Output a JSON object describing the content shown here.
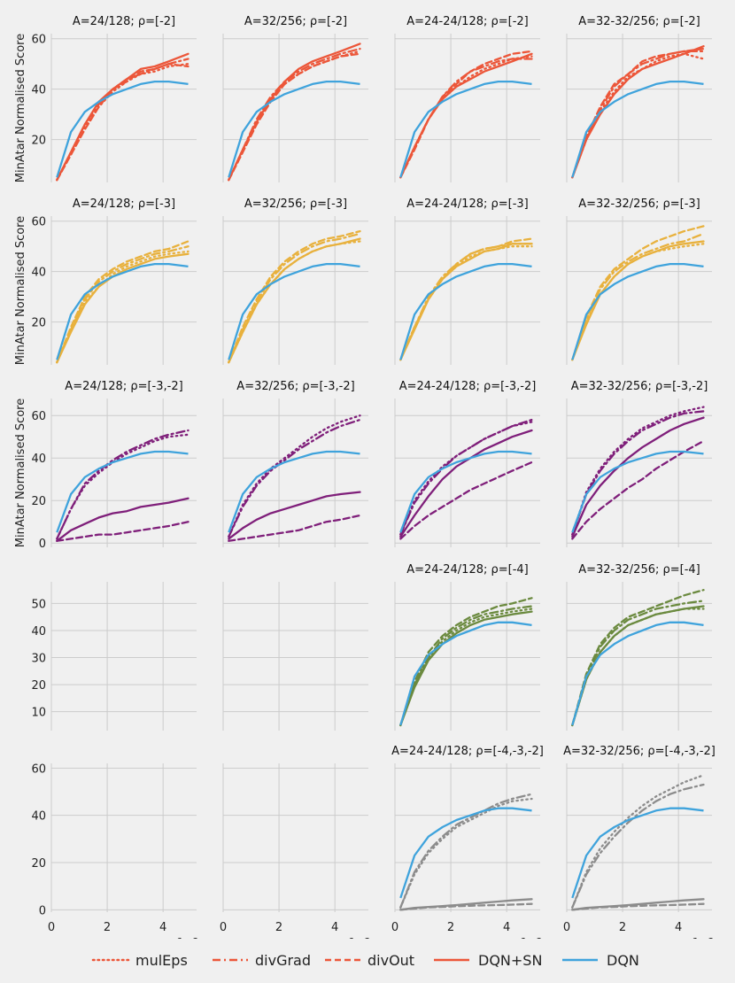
{
  "chart_data": {
    "type": "line",
    "figure_title": "",
    "ylabel": "MinAtar Normalised Score",
    "x_tick_labels": [
      "0",
      "2",
      "4"
    ],
    "x_ticks": [
      0,
      2,
      4
    ],
    "x_multiplier": "1e6",
    "xlim": [
      0,
      5.2
    ],
    "legend": [
      {
        "name": "mulEps",
        "style": "dotted"
      },
      {
        "name": "divGrad",
        "style": "dashdot"
      },
      {
        "name": "divOut",
        "style": "dashed"
      },
      {
        "name": "DQN+SN",
        "style": "solid"
      },
      {
        "name": "DQN",
        "style": "solid",
        "color": "#3fa3dc"
      }
    ],
    "colors": {
      "DQN": "#3fa3dc",
      "row1": "#ec5639",
      "row2": "#e8b13d",
      "row3": "#7f1f7a",
      "row4": "#6b8a3f",
      "row5": "#8c8c8c",
      "grid": "#cccccc",
      "background": "#f0f0f0"
    },
    "rows": [
      {
        "ylim": [
          3,
          62
        ],
        "yticks": [
          20,
          40,
          60
        ],
        "panels": [
          {
            "title": "A=24/128; ρ=[-2]",
            "mulEps": [
              4,
              14,
              25,
              33,
              39,
              43,
              46,
              47,
              49,
              50
            ],
            "divGrad": [
              4,
              15,
              26,
              34,
              40,
              44,
              46,
              48,
              50,
              52
            ],
            "divOut": [
              4,
              14,
              24,
              33,
              40,
              43,
              47,
              48,
              50,
              49
            ],
            "DQN+SN": [
              4,
              15,
              26,
              35,
              40,
              44,
              48,
              49,
              51,
              54
            ]
          },
          {
            "title": "A=32/256; ρ=[-2]",
            "mulEps": [
              4,
              15,
              27,
              36,
              42,
              46,
              49,
              51,
              53,
              55
            ],
            "divGrad": [
              4,
              16,
              28,
              37,
              43,
              47,
              50,
              52,
              54,
              56
            ],
            "divOut": [
              4,
              15,
              26,
              35,
              42,
              46,
              49,
              51,
              53,
              54
            ],
            "DQN+SN": [
              4,
              16,
              27,
              36,
              43,
              48,
              51,
              53,
              55,
              58
            ]
          },
          {
            "title": "A=24-24/128; ρ=[-2]",
            "mulEps": [
              5,
              17,
              28,
              36,
              41,
              45,
              48,
              50,
              52,
              53
            ],
            "divGrad": [
              5,
              17,
              28,
              37,
              43,
              47,
              49,
              51,
              52,
              52
            ],
            "divOut": [
              5,
              16,
              28,
              37,
              42,
              47,
              50,
              52,
              54,
              55
            ],
            "DQN+SN": [
              5,
              17,
              28,
              36,
              41,
              44,
              47,
              49,
              51,
              54
            ]
          },
          {
            "title": "A=32-32/256; ρ=[-2]",
            "mulEps": [
              5,
              20,
              31,
              39,
              45,
              48,
              51,
              53,
              54,
              52
            ],
            "divGrad": [
              5,
              20,
              32,
              41,
              46,
              50,
              52,
              54,
              55,
              55
            ],
            "divOut": [
              5,
              21,
              33,
              42,
              46,
              51,
              53,
              54,
              55,
              56
            ],
            "DQN+SN": [
              5,
              20,
              30,
              38,
              44,
              48,
              50,
              52,
              54,
              57
            ]
          }
        ]
      },
      {
        "ylim": [
          3,
          62
        ],
        "yticks": [
          20,
          40,
          60
        ],
        "panels": [
          {
            "title": "A=24/128; ρ=[-3]",
            "mulEps": [
              4,
              17,
              28,
              34,
              39,
              42,
              44,
              46,
              47,
              48
            ],
            "divGrad": [
              4,
              17,
              29,
              36,
              40,
              43,
              45,
              47,
              48,
              50
            ],
            "divOut": [
              4,
              18,
              30,
              37,
              41,
              44,
              46,
              48,
              49,
              52
            ],
            "DQN+SN": [
              4,
              16,
              27,
              34,
              38,
              41,
              43,
              45,
              46,
              47
            ]
          },
          {
            "title": "A=32/256; ρ=[-3]",
            "mulEps": [
              4,
              16,
              27,
              35,
              41,
              45,
              48,
              50,
              51,
              52
            ],
            "divGrad": [
              4,
              17,
              28,
              37,
              43,
              47,
              50,
              52,
              53,
              55
            ],
            "divOut": [
              4,
              18,
              29,
              38,
              44,
              48,
              51,
              53,
              54,
              56
            ],
            "DQN+SN": [
              4,
              16,
              27,
              35,
              41,
              45,
              48,
              50,
              51,
              53
            ]
          },
          {
            "title": "A=24-24/128; ρ=[-3]",
            "mulEps": [
              5,
              18,
              29,
              37,
              42,
              46,
              48,
              49,
              50,
              50
            ],
            "divGrad": [
              5,
              18,
              30,
              38,
              43,
              47,
              49,
              50,
              51,
              51
            ],
            "divOut": [
              5,
              18,
              29,
              37,
              43,
              47,
              49,
              50,
              52,
              53
            ],
            "DQN+SN": [
              5,
              17,
              29,
              37,
              42,
              45,
              48,
              49,
              51,
              51
            ]
          },
          {
            "title": "A=32-32/256; ρ=[-3]",
            "mulEps": [
              5,
              20,
              31,
              38,
              43,
              46,
              48,
              49,
              50,
              51
            ],
            "divGrad": [
              5,
              21,
              33,
              40,
              44,
              47,
              49,
              51,
              52,
              55
            ],
            "divOut": [
              5,
              22,
              34,
              41,
              45,
              49,
              52,
              54,
              56,
              58
            ],
            "DQN+SN": [
              5,
              19,
              31,
              38,
              43,
              46,
              48,
              50,
              51,
              52
            ]
          }
        ]
      },
      {
        "ylim": [
          -2,
          68
        ],
        "yticks": [
          0,
          20,
          40,
          60
        ],
        "panels": [
          {
            "title": "A=24/128; ρ=[-3,-2]",
            "mulEps": [
              2,
              16,
              27,
              33,
              38,
              42,
              45,
              48,
              50,
              51
            ],
            "divGrad": [
              2,
              16,
              28,
              34,
              39,
              43,
              46,
              49,
              51,
              53
            ],
            "divOut": [
              1,
              2,
              3,
              4,
              4,
              5,
              6,
              7,
              8,
              10
            ],
            "DQN+SN": [
              1,
              6,
              9,
              12,
              14,
              15,
              17,
              18,
              19,
              21
            ]
          },
          {
            "title": "A=32/256; ρ=[-3,-2]",
            "mulEps": [
              3,
              18,
              28,
              35,
              40,
              45,
              50,
              54,
              57,
              60
            ],
            "divGrad": [
              3,
              17,
              27,
              34,
              39,
              44,
              48,
              52,
              55,
              58
            ],
            "divOut": [
              1,
              2,
              3,
              4,
              5,
              6,
              8,
              10,
              11,
              13
            ],
            "DQN+SN": [
              2,
              7,
              11,
              14,
              16,
              18,
              20,
              22,
              23,
              24
            ]
          },
          {
            "title": "A=24-24/128; ρ=[-3,-2]",
            "mulEps": [
              4,
              20,
              29,
              36,
              41,
              45,
              49,
              52,
              55,
              57
            ],
            "divGrad": [
              4,
              19,
              28,
              35,
              41,
              45,
              49,
              52,
              55,
              58
            ],
            "divOut": [
              2,
              8,
              13,
              17,
              21,
              25,
              28,
              31,
              34,
              38
            ],
            "DQN+SN": [
              3,
              13,
              22,
              30,
              36,
              40,
              44,
              47,
              50,
              53
            ]
          },
          {
            "title": "A=32-32/256; ρ=[-3,-2]",
            "mulEps": [
              4,
              24,
              35,
              43,
              49,
              54,
              57,
              60,
              62,
              64
            ],
            "divGrad": [
              4,
              23,
              34,
              42,
              48,
              53,
              56,
              59,
              61,
              62
            ],
            "divOut": [
              2,
              10,
              16,
              21,
              26,
              30,
              35,
              39,
              43,
              48
            ],
            "DQN+SN": [
              3,
              18,
              27,
              34,
              40,
              45,
              49,
              53,
              56,
              59
            ]
          }
        ]
      },
      {
        "ylim": [
          3,
          58
        ],
        "yticks": [
          10,
          20,
          30,
          40,
          50
        ],
        "panels": [
          {
            "title": "",
            "empty": true
          },
          {
            "title": "",
            "empty": true
          },
          {
            "title": "A=24-24/128; ρ=[-4]",
            "mulEps": [
              5,
              20,
              30,
              36,
              40,
              43,
              45,
              46,
              47,
              48
            ],
            "divGrad": [
              5,
              20,
              30,
              37,
              41,
              44,
              46,
              47,
              48,
              49
            ],
            "divOut": [
              5,
              21,
              32,
              38,
              42,
              45,
              47,
              49,
              50,
              52
            ],
            "DQN+SN": [
              5,
              19,
              29,
              35,
              39,
              42,
              44,
              45,
              46,
              47
            ]
          },
          {
            "title": "A=32-32/256; ρ=[-4]",
            "mulEps": [
              5,
              22,
              32,
              38,
              42,
              44,
              46,
              47,
              48,
              48
            ],
            "divGrad": [
              5,
              23,
              34,
              40,
              44,
              46,
              48,
              49,
              50,
              51
            ],
            "divOut": [
              5,
              24,
              35,
              41,
              45,
              47,
              49,
              51,
              53,
              55
            ],
            "DQN+SN": [
              5,
              22,
              32,
              38,
              42,
              44,
              46,
              47,
              48,
              49
            ]
          }
        ]
      },
      {
        "ylim": [
          -1,
          62
        ],
        "yticks": [
          0,
          20,
          40,
          60
        ],
        "panels": [
          {
            "title": "",
            "empty": true
          },
          {
            "title": "",
            "empty": true
          },
          {
            "title": "A=24-24/128; ρ=[-4,-3,-2]",
            "mulEps": [
              1,
              15,
              24,
              30,
              35,
              38,
              41,
              44,
              46,
              47
            ],
            "divGrad": [
              1,
              16,
              25,
              31,
              36,
              39,
              42,
              45,
              47,
              49
            ],
            "divOut": [
              0,
              0.5,
              1,
              1.2,
              1.5,
              1.7,
              1.9,
              2,
              2.2,
              2.5
            ],
            "DQN+SN": [
              0,
              0.8,
              1.2,
              1.6,
              2,
              2.5,
              3,
              3.5,
              4,
              4.5
            ]
          },
          {
            "title": "A=32-32/256; ρ=[-4,-3,-2]",
            "mulEps": [
              1,
              16,
              26,
              33,
              39,
              44,
              48,
              51,
              54,
              57
            ],
            "divGrad": [
              1,
              15,
              24,
              31,
              37,
              42,
              46,
              49,
              51,
              53
            ],
            "divOut": [
              0,
              0.5,
              1,
              1.2,
              1.5,
              1.7,
              1.9,
              2,
              2.2,
              2.5
            ],
            "DQN+SN": [
              0,
              0.8,
              1.2,
              1.6,
              2,
              2.5,
              3,
              3.5,
              4,
              4.5
            ]
          }
        ]
      }
    ],
    "dqn_curve": [
      5,
      23,
      31,
      35,
      38,
      40,
      42,
      43,
      43,
      42
    ],
    "x_points": [
      0.2,
      0.7,
      1.2,
      1.7,
      2.2,
      2.7,
      3.2,
      3.7,
      4.2,
      4.9
    ]
  }
}
